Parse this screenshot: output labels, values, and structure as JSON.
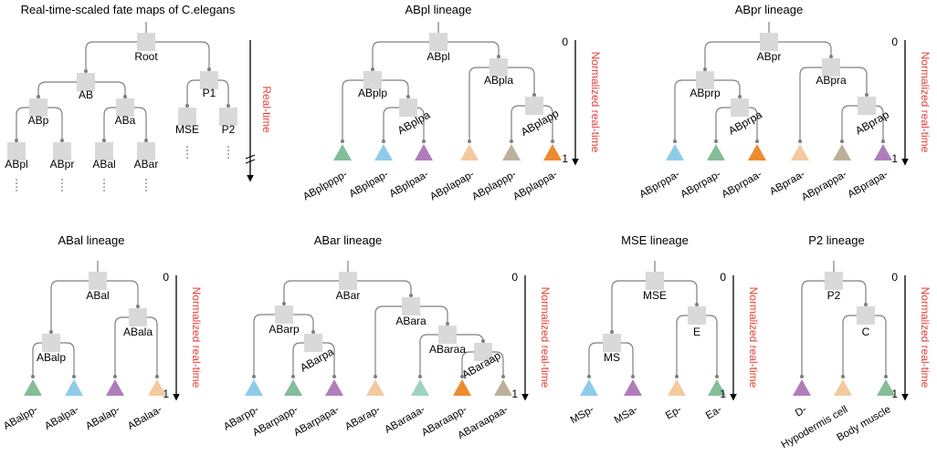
{
  "colors": {
    "node_fill": "#d9d9d9",
    "line": "#7f7f7f",
    "axis": "#000000",
    "red_label": "#e8413a",
    "green": "#84bd97",
    "blue": "#8ecbea",
    "purple": "#b07dbb",
    "peach": "#f4c99f",
    "taupe": "#bdb09a",
    "orange": "#ee8a2f",
    "teal": "#9fd3c1"
  },
  "panels": [
    {
      "id": "root",
      "title": "Real-time-scaled fate maps of C.elegans",
      "axis_label": "Real-time",
      "axis_ticks": [
        "",
        ""
      ],
      "axis_break": true,
      "nodes": [
        {
          "label": "Root"
        },
        {
          "label": "AB"
        },
        {
          "label": "P1"
        },
        {
          "label": "ABp"
        },
        {
          "label": "ABa"
        },
        {
          "label": "MSE"
        },
        {
          "label": "P2"
        },
        {
          "label": "ABpl"
        },
        {
          "label": "ABpr"
        },
        {
          "label": "ABal"
        },
        {
          "label": "ABar"
        }
      ],
      "leaves": []
    },
    {
      "id": "abpl",
      "title": "ABpl lineage",
      "axis_label": "Normalized real-time",
      "axis_ticks": [
        "0",
        "1"
      ],
      "nodes": [
        {
          "label": "ABpl"
        },
        {
          "label": "ABplp"
        },
        {
          "label": "ABpla"
        },
        {
          "label": "ABplpa"
        },
        {
          "label": "ABplapp"
        }
      ],
      "leaves": [
        {
          "label": "ABplpppp-",
          "color": "green"
        },
        {
          "label": "ABplpap-",
          "color": "blue"
        },
        {
          "label": "ABplpaa-",
          "color": "purple"
        },
        {
          "label": "ABplapap-",
          "color": "peach"
        },
        {
          "label": "ABplappp-",
          "color": "taupe"
        },
        {
          "label": "ABplappa-",
          "color": "orange"
        }
      ]
    },
    {
      "id": "abpr",
      "title": "ABpr lineage",
      "axis_label": "Normalized real-time",
      "axis_ticks": [
        "0",
        "1"
      ],
      "nodes": [
        {
          "label": "ABpr"
        },
        {
          "label": "ABprp"
        },
        {
          "label": "ABpra"
        },
        {
          "label": "ABprpa"
        },
        {
          "label": "ABprap"
        }
      ],
      "leaves": [
        {
          "label": "ABprppa-",
          "color": "blue"
        },
        {
          "label": "ABprpap-",
          "color": "green"
        },
        {
          "label": "ABprpaa-",
          "color": "orange"
        },
        {
          "label": "ABpraa-",
          "color": "peach"
        },
        {
          "label": "ABprappa-",
          "color": "taupe"
        },
        {
          "label": "ABprapa-",
          "color": "purple"
        }
      ]
    },
    {
      "id": "abal",
      "title": "ABal lineage",
      "axis_label": "Normalized real-time",
      "axis_ticks": [
        "0",
        "1"
      ],
      "nodes": [
        {
          "label": "ABal"
        },
        {
          "label": "ABalp"
        },
        {
          "label": "ABala"
        }
      ],
      "leaves": [
        {
          "label": "ABalpp-",
          "color": "green"
        },
        {
          "label": "ABalpa-",
          "color": "blue"
        },
        {
          "label": "ABalap-",
          "color": "purple"
        },
        {
          "label": "ABalaa-",
          "color": "peach"
        }
      ]
    },
    {
      "id": "abar",
      "title": "ABar lineage",
      "axis_label": "Normalized real-time",
      "axis_ticks": [
        "0",
        "1"
      ],
      "nodes": [
        {
          "label": "ABar"
        },
        {
          "label": "ABarp"
        },
        {
          "label": "ABara"
        },
        {
          "label": "ABarpa"
        },
        {
          "label": "ABaraa"
        },
        {
          "label": "ABaraap"
        }
      ],
      "leaves": [
        {
          "label": "ABarpp-",
          "color": "blue"
        },
        {
          "label": "ABarpapp-",
          "color": "green"
        },
        {
          "label": "ABarpapa-",
          "color": "purple"
        },
        {
          "label": "ABarap-",
          "color": "peach"
        },
        {
          "label": "ABaraaa-",
          "color": "teal"
        },
        {
          "label": "ABaraapp-",
          "color": "orange"
        },
        {
          "label": "ABaraapaa-",
          "color": "taupe"
        }
      ]
    },
    {
      "id": "mse",
      "title": "MSE lineage",
      "axis_label": "Normalized real-time",
      "axis_ticks": [
        "0",
        "1"
      ],
      "nodes": [
        {
          "label": "MSE"
        },
        {
          "label": "MS"
        },
        {
          "label": "E"
        }
      ],
      "leaves": [
        {
          "label": "MSp-",
          "color": "blue"
        },
        {
          "label": "MSa-",
          "color": "purple"
        },
        {
          "label": "Ep-",
          "color": "peach"
        },
        {
          "label": "Ea-",
          "color": "green"
        }
      ]
    },
    {
      "id": "p2",
      "title": "P2 lineage",
      "axis_label": "Normalized real-time",
      "axis_ticks": [
        "0",
        "1"
      ],
      "nodes": [
        {
          "label": "P2"
        },
        {
          "label": "C"
        }
      ],
      "leaves": [
        {
          "label": "D-",
          "color": "purple"
        },
        {
          "label": "Hypodermis cell",
          "color": "peach"
        },
        {
          "label": "Body muscle",
          "color": "green"
        }
      ]
    }
  ]
}
